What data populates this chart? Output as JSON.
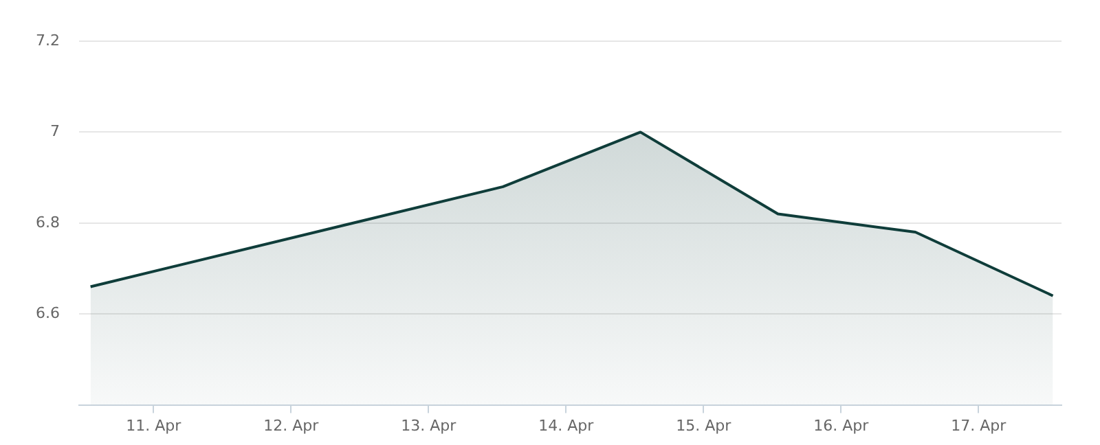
{
  "chart_data": {
    "type": "area",
    "x": [
      "--04-10T13:00",
      "--04-13T13:00",
      "--04-14T13:00",
      "--04-15T13:00",
      "--04-16T13:00",
      "--04-17T13:00"
    ],
    "series": [
      {
        "color": "#0f3d3a",
        "values": [
          6.66,
          6.88,
          7.0,
          6.82,
          6.78,
          6.64
        ]
      }
    ],
    "xlim": [
      "--04-10T11:00",
      "--04-17T14:30"
    ],
    "xticks": [
      {
        "value": "--04-11",
        "label": "11. Apr"
      },
      {
        "value": "--04-12",
        "label": "12. Apr"
      },
      {
        "value": "--04-13",
        "label": "13. Apr"
      },
      {
        "value": "--04-14",
        "label": "14. Apr"
      },
      {
        "value": "--04-15",
        "label": "15. Apr"
      },
      {
        "value": "--04-16",
        "label": "16. Apr"
      },
      {
        "value": "--04-17",
        "label": "17. Apr"
      }
    ],
    "ylim": [
      6.4,
      7.2
    ],
    "yticks": [
      6.6,
      6.8,
      7,
      7.2
    ],
    "grid": "y",
    "legend": false,
    "marker": "none",
    "line_style": "solid"
  }
}
